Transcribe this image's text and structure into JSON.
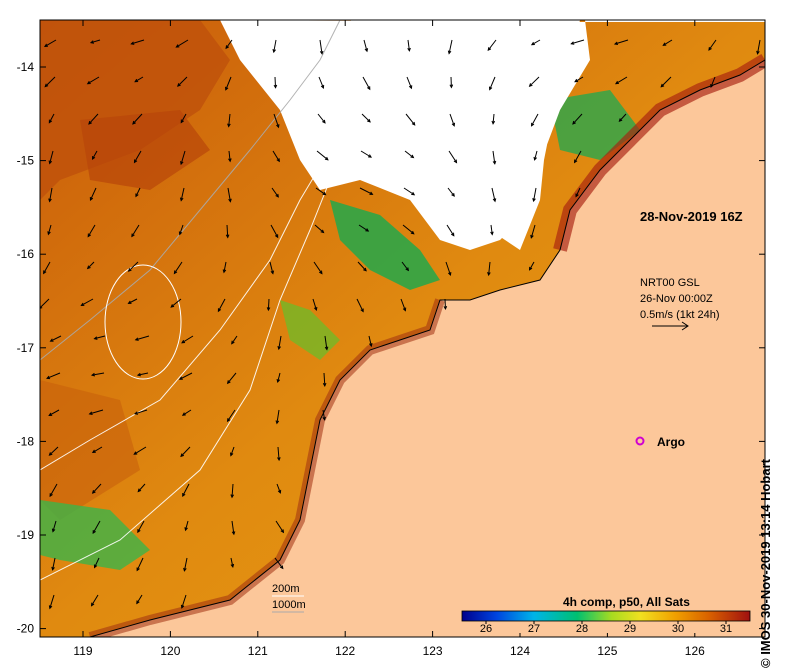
{
  "x_ticks": [
    "119",
    "120",
    "121",
    "122",
    "123",
    "124",
    "125",
    "126"
  ],
  "y_ticks": [
    "-14",
    "-15",
    "-16",
    "-17",
    "-18",
    "-19",
    "-20"
  ],
  "timestamp": "28-Nov-2019 16Z",
  "current_legend": {
    "line1": "NRT00 GSL",
    "line2": "26-Nov 00:00Z",
    "line3": "0.5m/s (1kt 24h)"
  },
  "argo_label": "Argo",
  "contours": {
    "label_200": "200m",
    "label_1000": "1000m"
  },
  "colorbar": {
    "title": "4h comp, p50, All Sats",
    "ticks": [
      "26",
      "27",
      "28",
      "29",
      "30",
      "31"
    ],
    "range": [
      25.5,
      31.5
    ],
    "colors": [
      "#00008c",
      "#0044e0",
      "#00b4e8",
      "#00c070",
      "#a8dc20",
      "#f0e020",
      "#f0a000",
      "#d86000",
      "#a01010"
    ]
  },
  "credit": "© IMOS 30-Nov-2019 13:14 Hobart",
  "palette": {
    "land": "#fcc79a",
    "ocean_warm": "#e89410",
    "ocean_hot": "#b84a0a",
    "cloud": "#ffffff"
  }
}
